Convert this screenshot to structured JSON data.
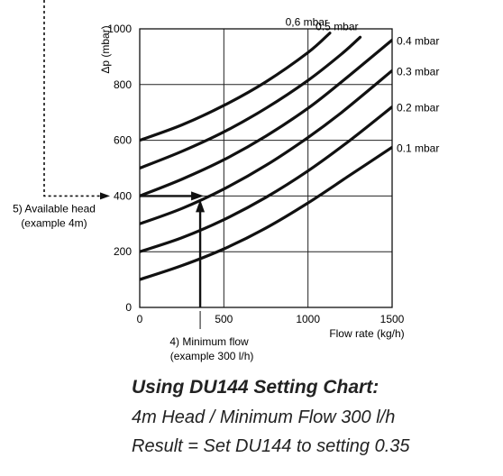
{
  "chart_data": {
    "type": "line",
    "xlabel": "Flow rate (kg/h)",
    "ylabel": "Δp (mbar)",
    "xlim": [
      0,
      1500
    ],
    "ylim": [
      0,
      1000
    ],
    "xticks": [
      0,
      500,
      1000,
      1500
    ],
    "yticks": [
      0,
      200,
      400,
      600,
      800,
      1000
    ],
    "grid": true,
    "series": [
      {
        "name": "0.1 mbar",
        "x": [
          0,
          250,
          500,
          750,
          1000,
          1250,
          1500
        ],
        "y": [
          100,
          150,
          210,
          285,
          375,
          475,
          575
        ]
      },
      {
        "name": "0.2 mbar",
        "x": [
          0,
          250,
          500,
          750,
          1000,
          1250,
          1500
        ],
        "y": [
          200,
          250,
          315,
          395,
          490,
          600,
          720
        ]
      },
      {
        "name": "0.3 mbar",
        "x": [
          0,
          250,
          500,
          750,
          1000,
          1200,
          1500
        ],
        "y": [
          300,
          355,
          425,
          510,
          610,
          700,
          850
        ]
      },
      {
        "name": "0.4 mbar",
        "x": [
          0,
          250,
          500,
          750,
          1000,
          1200,
          1500
        ],
        "y": [
          400,
          460,
          530,
          615,
          715,
          810,
          960
        ]
      },
      {
        "name": "0.5 mbar",
        "x": [
          0,
          250,
          500,
          750,
          1000,
          1200,
          1310
        ],
        "y": [
          500,
          560,
          630,
          715,
          815,
          910,
          970
        ]
      },
      {
        "name": "0,6 mbar",
        "x": [
          0,
          250,
          500,
          750,
          1000,
          1130
        ],
        "y": [
          600,
          655,
          725,
          810,
          915,
          985
        ]
      }
    ],
    "annotations": {
      "head": {
        "label_line1": "5) Available head",
        "label_line2": "(example 4m)",
        "y": 400
      },
      "flow": {
        "label_line1": "4) Minimum flow",
        "label_line2": "(example 300 l/h)",
        "x": 370
      }
    }
  },
  "caption": {
    "title": "Using DU144 Setting Chart:",
    "line1": "4m Head / Minimum Flow 300 l/h",
    "line2": "Result = Set DU144 to setting 0.35"
  }
}
